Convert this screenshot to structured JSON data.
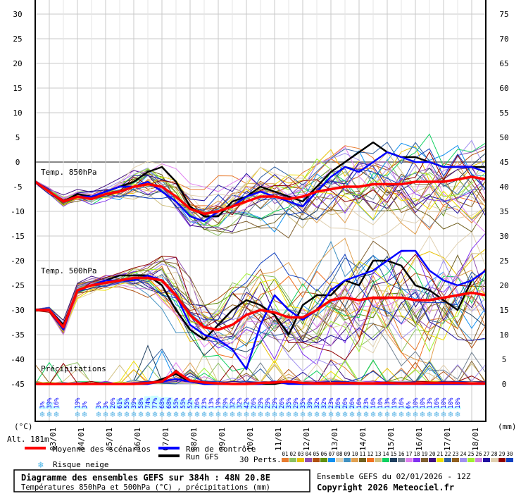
{
  "chart_data": {
    "type": "line",
    "title": "Diagramme des ensembles GEFS sur 384h : 48N 20.8E",
    "subtitle": "Températures 850hPa et 500hPa (°C) , précipitations (mm)",
    "run_info": "Ensemble GEFS du 02/01/2026 - 12Z",
    "copyright": "Copyright 2026 Meteociel.fr",
    "altitude": "Alt. 181m",
    "ylabel_left": "(°C)",
    "ylabel_right": "(mm)",
    "ylim_left": [
      -45,
      30
    ],
    "ylim_right": [
      0,
      75
    ],
    "yticks_left": [
      "30",
      "25",
      "20",
      "15",
      "10",
      "5",
      "0",
      "-5",
      "-10",
      "-15",
      "-20",
      "-25",
      "-30",
      "-35",
      "-40",
      "-45"
    ],
    "yticks_right": [
      "75",
      "70",
      "65",
      "60",
      "55",
      "50",
      "45",
      "40",
      "35",
      "30",
      "25",
      "20",
      "15",
      "10",
      "5",
      "0"
    ],
    "x_step_hours": 12,
    "x_hours_total": 384,
    "x_labels": [
      "03/01",
      "04/01",
      "05/01",
      "06/01",
      "07/01",
      "08/01",
      "09/01",
      "10/01",
      "11/01",
      "12/01",
      "13/01",
      "14/01",
      "15/01",
      "16/01",
      "17/01",
      "18/01"
    ],
    "panel_labels": {
      "t850": "Temp. 850hPa",
      "t500": "Temp. 500hPa",
      "precip": "Précipitations"
    },
    "series": [
      {
        "name": "Moyenne des scénarios",
        "key": "mean",
        "color": "#ff0000",
        "t850": [
          -4,
          -6,
          -8,
          -7,
          -7.5,
          -6.5,
          -6,
          -5,
          -4.5,
          -5,
          -7,
          -9.5,
          -10.5,
          -10,
          -9,
          -8,
          -7,
          -7,
          -7.5,
          -7,
          -6,
          -5.5,
          -5,
          -5,
          -4.5,
          -4.5,
          -4.5,
          -4,
          -4,
          -4,
          -3.5,
          -3,
          -3.5
        ],
        "t500": [
          -30,
          -30,
          -33.5,
          -26,
          -25,
          -24.5,
          -24,
          -23.5,
          -23.5,
          -24,
          -27,
          -31,
          -33.5,
          -34,
          -33,
          -31,
          -30,
          -30.5,
          -31.5,
          -31.5,
          -30,
          -28,
          -27.5,
          -28,
          -27.5,
          -27.5,
          -27.5,
          -28,
          -28,
          -27.5,
          -27,
          -26.5,
          -27
        ],
        "precip": [
          0,
          0,
          0,
          0,
          0,
          0,
          0,
          0,
          0.2,
          0.5,
          2.5,
          0.7,
          0.3,
          0.1,
          0,
          0,
          0.2,
          0.3,
          0.5,
          0.2,
          0.1,
          0.1,
          0.2,
          0.1,
          0.1,
          0.2,
          0.1,
          0.1,
          0.2,
          0.2,
          0.2,
          0.1,
          0.1
        ]
      },
      {
        "name": "Run de contrôle",
        "key": "control",
        "color": "#0000ff",
        "t850": [
          -4,
          -6,
          -8,
          -7,
          -7,
          -6,
          -5,
          -5,
          -4,
          -6,
          -8,
          -11,
          -12,
          -10,
          -9,
          -7,
          -6,
          -7,
          -8,
          -9,
          -6,
          -3,
          -1,
          -2,
          0,
          2,
          1,
          0,
          0,
          -1,
          -1,
          -1,
          -2
        ],
        "t500": [
          -30,
          -30,
          -34,
          -26,
          -25,
          -24,
          -24,
          -24,
          -23,
          -24,
          -27,
          -33,
          -35,
          -36,
          -38,
          -42,
          -33,
          -27,
          -30,
          -32,
          -30,
          -26,
          -24,
          -23,
          -22,
          -20,
          -18,
          -18,
          -22,
          -24,
          -25,
          -24,
          -22
        ],
        "precip": [
          0,
          0,
          0,
          0,
          0,
          0,
          0,
          0,
          0,
          0.5,
          1,
          0.5,
          0,
          0,
          0,
          0,
          0,
          0.5,
          0,
          0,
          0,
          0,
          0,
          0,
          0,
          0,
          0,
          0,
          0,
          0,
          0,
          0,
          0
        ]
      },
      {
        "name": "Run GFS",
        "key": "gfs",
        "color": "#000000",
        "t850": [
          -4,
          -6,
          -8,
          -6.5,
          -7,
          -6,
          -5,
          -4,
          -2,
          -1,
          -4,
          -9,
          -11,
          -11,
          -8,
          -7,
          -5,
          -6,
          -7,
          -8,
          -5,
          -2,
          0,
          2,
          4,
          2,
          1,
          1,
          0,
          -1,
          -1,
          -1,
          -1
        ],
        "t500": [
          -30,
          -30,
          -33,
          -26,
          -25,
          -24,
          -23,
          -23,
          -23,
          -25,
          -30,
          -34,
          -36,
          -33,
          -30,
          -28,
          -29,
          -31,
          -35,
          -29,
          -27,
          -27,
          -24,
          -25,
          -20,
          -20,
          -21,
          -25,
          -26,
          -28,
          -30,
          -24,
          -22
        ],
        "precip": [
          0,
          0,
          0,
          0,
          0,
          0,
          0,
          0,
          0,
          1,
          2,
          0.5,
          0,
          0,
          0,
          0,
          0,
          0,
          0.5,
          0,
          0,
          0,
          0,
          0,
          0,
          0,
          0,
          0,
          0,
          0,
          0,
          0,
          0
        ]
      }
    ],
    "perturbations": {
      "label": "30 Perts.",
      "count": 30,
      "names": [
        "01",
        "02",
        "03",
        "04",
        "05",
        "06",
        "07",
        "08",
        "09",
        "10",
        "11",
        "12",
        "13",
        "14",
        "15",
        "16",
        "17",
        "18",
        "19",
        "20",
        "21",
        "22",
        "23",
        "24",
        "25",
        "26",
        "27",
        "28",
        "29",
        "30"
      ],
      "colors": [
        "#e87c30",
        "#8cc060",
        "#e8c000",
        "#9050b0",
        "#b05010",
        "#609010",
        "#1090f0",
        "#e0d0b0",
        "#4090c0",
        "#e0a050",
        "#706020",
        "#f07020",
        "#d0c080",
        "#10d060",
        "#204060",
        "#708090",
        "#e080f0",
        "#8030f0",
        "#806030",
        "#401080",
        "#f0e000",
        "#3060a0",
        "#906020",
        "#a090f0",
        "#a0f030",
        "#d080e0",
        "#2010a0",
        "#e0d0b0",
        "#900000",
        "#1040c0"
      ],
      "spread_t850": [
        0.3,
        0.5,
        0.8,
        0.8,
        1,
        1,
        1.5,
        2,
        2.5,
        3,
        3,
        2.5,
        2.5,
        3,
        3,
        3.5,
        3.5,
        4,
        4,
        4,
        4.5,
        4.5,
        5,
        5,
        5,
        5,
        5,
        5.5,
        5.5,
        5.5,
        5.5,
        5.5,
        5.5
      ],
      "spread_t500": [
        0.3,
        0.5,
        1,
        1,
        1,
        1,
        1,
        1.5,
        2,
        3,
        4,
        4,
        4,
        4,
        5,
        5,
        5,
        5.5,
        5.5,
        6,
        6,
        6,
        6,
        6.5,
        6.5,
        6.5,
        7,
        7,
        7,
        7,
        7,
        7,
        7
      ]
    },
    "snow_risk": {
      "label": "Risque neige",
      "percent_labels": [
        "3%",
        "39%",
        "16%",
        "19%",
        "3%",
        "3%",
        "3%",
        "26%",
        "61%",
        "55%",
        "39%",
        "58%",
        "74%",
        "77%",
        "68%",
        "68%",
        "55%",
        "55%",
        "52%",
        "26%",
        "23%",
        "13%",
        "19%",
        "29%",
        "32%",
        "32%",
        "42%",
        "26%",
        "29%",
        "29%",
        "29%",
        "26%",
        "35%",
        "29%",
        "35%",
        "39%",
        "32%",
        "32%",
        "23%",
        "26%",
        "26%",
        "26%",
        "16%",
        "23%",
        "16%",
        "10%",
        "13%",
        "19%",
        "16%",
        "6%",
        "10%",
        "10%",
        "13%",
        "16%",
        "10%",
        "10%",
        "10%"
      ],
      "step_index": [
        1,
        2,
        3,
        6,
        7,
        9,
        10,
        11,
        12,
        13,
        14,
        15,
        16,
        17,
        18,
        19,
        20,
        21,
        22,
        23,
        24,
        25,
        26,
        27,
        28,
        29,
        30,
        31,
        32,
        33,
        34,
        35,
        36,
        37,
        38,
        39,
        40,
        41,
        42,
        43,
        44,
        45,
        46,
        47,
        48,
        49,
        50,
        51,
        52,
        53,
        54,
        55,
        56,
        57,
        58,
        59,
        60
      ]
    },
    "grid": true
  }
}
